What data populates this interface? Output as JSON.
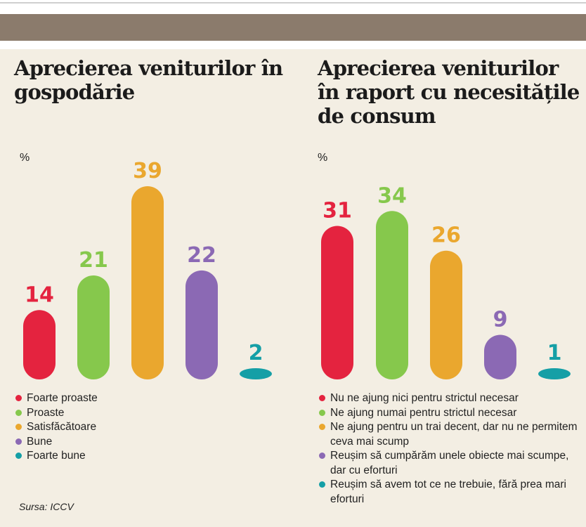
{
  "colors": {
    "red": "#e4233f",
    "green": "#86c84c",
    "orange": "#eaa72e",
    "purple": "#8b69b4",
    "teal": "#159fa6"
  },
  "chart_data": [
    {
      "type": "bar",
      "title": "Aprecierea veniturilor în gospodărie",
      "unit": "%",
      "ylim": [
        0,
        40
      ],
      "grid": false,
      "legend_position": "bottom",
      "categories": [
        "Foarte proaste",
        "Proaste",
        "Satisfăcătoare",
        "Bune",
        "Foarte bune"
      ],
      "values": [
        14,
        21,
        39,
        22,
        2
      ],
      "colors": [
        "#e4233f",
        "#86c84c",
        "#eaa72e",
        "#8b69b4",
        "#159fa6"
      ]
    },
    {
      "type": "bar",
      "title": "Aprecierea veniturilor în raport cu necesitățile de consum",
      "unit": "%",
      "ylim": [
        0,
        40
      ],
      "grid": false,
      "legend_position": "bottom",
      "categories": [
        "Nu ne ajung nici pentru strictul necesar",
        "Ne ajung numai pentru strictul necesar",
        "Ne ajung pentru un trai decent, dar nu ne permitem ceva mai scump",
        "Reușim să cumpărăm unele obiecte mai scumpe, dar cu eforturi",
        "Reușim să avem tot ce ne trebuie, fără prea mari eforturi"
      ],
      "values": [
        31,
        34,
        26,
        9,
        1
      ],
      "colors": [
        "#e4233f",
        "#86c84c",
        "#eaa72e",
        "#8b69b4",
        "#159fa6"
      ]
    }
  ],
  "source": "Sursa: ICCV"
}
